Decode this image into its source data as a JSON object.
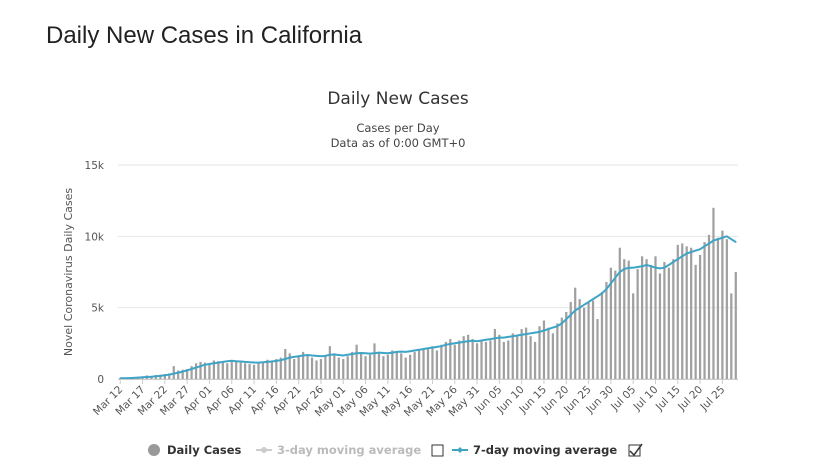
{
  "page": {
    "title": "Daily New Cases in California"
  },
  "chart_data": {
    "type": "bar",
    "title": "Daily New Cases",
    "subtitle": "Cases per Day",
    "subtitle2": "Data as of 0:00 GMT+0",
    "ylabel": "Novel Coronavirus Daily Cases",
    "xlabel": "",
    "ylim": [
      0,
      15000
    ],
    "y_ticks": [
      0,
      5000,
      10000,
      15000
    ],
    "y_tick_labels": [
      "0",
      "5k",
      "10k",
      "15k"
    ],
    "grid": true,
    "start_date": "Mar 12",
    "x_tick_labels": [
      "Mar 12",
      "Mar 17",
      "Mar 22",
      "Mar 27",
      "Apr 01",
      "Apr 06",
      "Apr 11",
      "Apr 16",
      "Apr 21",
      "Apr 26",
      "May 01",
      "May 06",
      "May 11",
      "May 16",
      "May 21",
      "May 26",
      "May 31",
      "Jun 05",
      "Jun 10",
      "Jun 15",
      "Jun 20",
      "Jun 25",
      "Jun 30",
      "Jul 05",
      "Jul 10",
      "Jul 15",
      "Jul 20",
      "Jul 25"
    ],
    "colors": {
      "bars": "#a0a0a0",
      "line": "#3fa4c6",
      "legend_dot": "#999999",
      "legend_off": "#cccccc"
    },
    "series": [
      {
        "name": "Daily Cases",
        "type": "bar",
        "values": [
          50,
          50,
          80,
          120,
          150,
          160,
          250,
          200,
          280,
          300,
          350,
          400,
          900,
          600,
          650,
          700,
          900,
          1100,
          1200,
          1150,
          1000,
          1300,
          1250,
          1200,
          1100,
          1300,
          1200,
          1150,
          1100,
          1050,
          1000,
          1100,
          1200,
          1350,
          1300,
          1400,
          1500,
          2100,
          1800,
          1400,
          1600,
          1900,
          1700,
          1500,
          1300,
          1400,
          1600,
          2300,
          1800,
          1500,
          1400,
          1600,
          1900,
          2400,
          1800,
          1600,
          1700,
          2500,
          1800,
          1600,
          1700,
          2000,
          1900,
          1800,
          1500,
          1700,
          1900,
          2000,
          2100,
          2200,
          2300,
          2000,
          2400,
          2600,
          2800,
          2400,
          2700,
          3000,
          3100,
          2800,
          2500,
          2700,
          2600,
          2700,
          3500,
          3100,
          2600,
          2700,
          3200,
          3000,
          3500,
          3600,
          3000,
          2600,
          3700,
          4100,
          3600,
          3200,
          3900,
          4300,
          4700,
          5400,
          6400,
          5600,
          5000,
          5400,
          5500,
          4200,
          6100,
          6800,
          7800,
          7600,
          9200,
          8400,
          8300,
          6000,
          7700,
          8600,
          8400,
          8000,
          8600,
          7400,
          8200,
          7800,
          8400,
          9400,
          9500,
          9300,
          9200,
          8000,
          8700,
          9600,
          10100,
          12000,
          9900,
          10400,
          9800,
          6000,
          7500
        ]
      },
      {
        "name": "3-day moving average",
        "type": "line",
        "visible": false,
        "values": []
      },
      {
        "name": "7-day moving average",
        "type": "line",
        "visible": true,
        "values": [
          50,
          55,
          65,
          80,
          100,
          120,
          140,
          160,
          190,
          220,
          260,
          300,
          380,
          450,
          520,
          600,
          700,
          800,
          900,
          1000,
          1050,
          1100,
          1150,
          1200,
          1250,
          1280,
          1250,
          1230,
          1200,
          1180,
          1160,
          1150,
          1170,
          1200,
          1230,
          1270,
          1320,
          1400,
          1500,
          1550,
          1600,
          1650,
          1680,
          1650,
          1620,
          1600,
          1620,
          1700,
          1720,
          1680,
          1650,
          1700,
          1750,
          1800,
          1820,
          1800,
          1780,
          1800,
          1850,
          1820,
          1800,
          1850,
          1900,
          1920,
          1900,
          1950,
          2000,
          2050,
          2100,
          2150,
          2200,
          2250,
          2300,
          2400,
          2450,
          2500,
          2550,
          2600,
          2650,
          2680,
          2650,
          2700,
          2750,
          2800,
          2850,
          2900,
          2900,
          2950,
          3000,
          3050,
          3100,
          3150,
          3200,
          3250,
          3300,
          3400,
          3500,
          3600,
          3700,
          3900,
          4200,
          4500,
          4800,
          5000,
          5200,
          5400,
          5600,
          5800,
          6000,
          6300,
          6700,
          7100,
          7500,
          7700,
          7800,
          7800,
          7850,
          7900,
          8000,
          7900,
          7800,
          7750,
          7800,
          8000,
          8200,
          8400,
          8600,
          8800,
          8900,
          9000,
          9100,
          9300,
          9500,
          9700,
          9800,
          9900,
          10000,
          9800,
          9600
        ]
      }
    ],
    "legend": {
      "placement": "bottom-center",
      "items": [
        {
          "label": "Daily Cases",
          "active": true
        },
        {
          "label": "3-day moving average",
          "active": false
        },
        {
          "label": "7-day moving average",
          "active": true
        }
      ]
    }
  }
}
